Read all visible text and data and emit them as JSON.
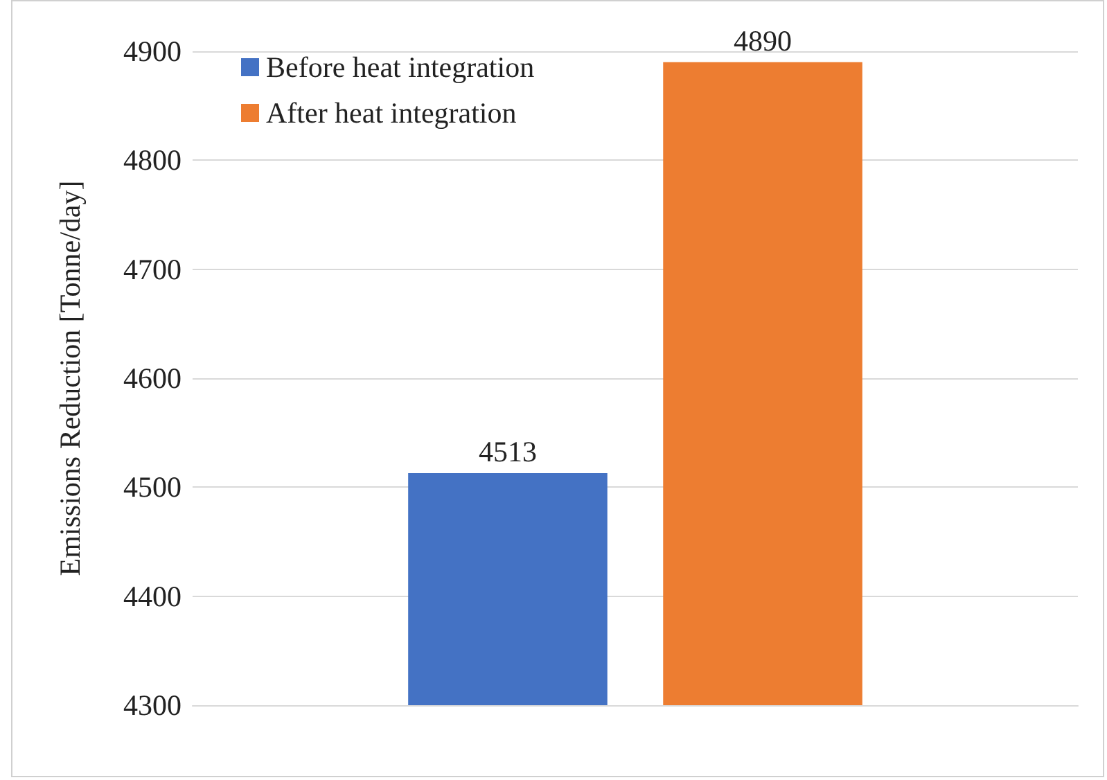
{
  "chart_data": {
    "type": "bar",
    "ylabel": "Emissions Reduction [Tonne/day]",
    "categories": [
      null
    ],
    "series": [
      {
        "name": "Before heat integration",
        "color": "#4472c4",
        "values": [
          4513
        ]
      },
      {
        "name": "After heat integration",
        "color": "#ed7d31",
        "values": [
          4890
        ]
      }
    ],
    "ylim": [
      4300,
      4900
    ],
    "yticks": [
      4300,
      4400,
      4500,
      4600,
      4700,
      4800,
      4900
    ],
    "grid": "y",
    "legend": "top left",
    "data_labels": true
  }
}
